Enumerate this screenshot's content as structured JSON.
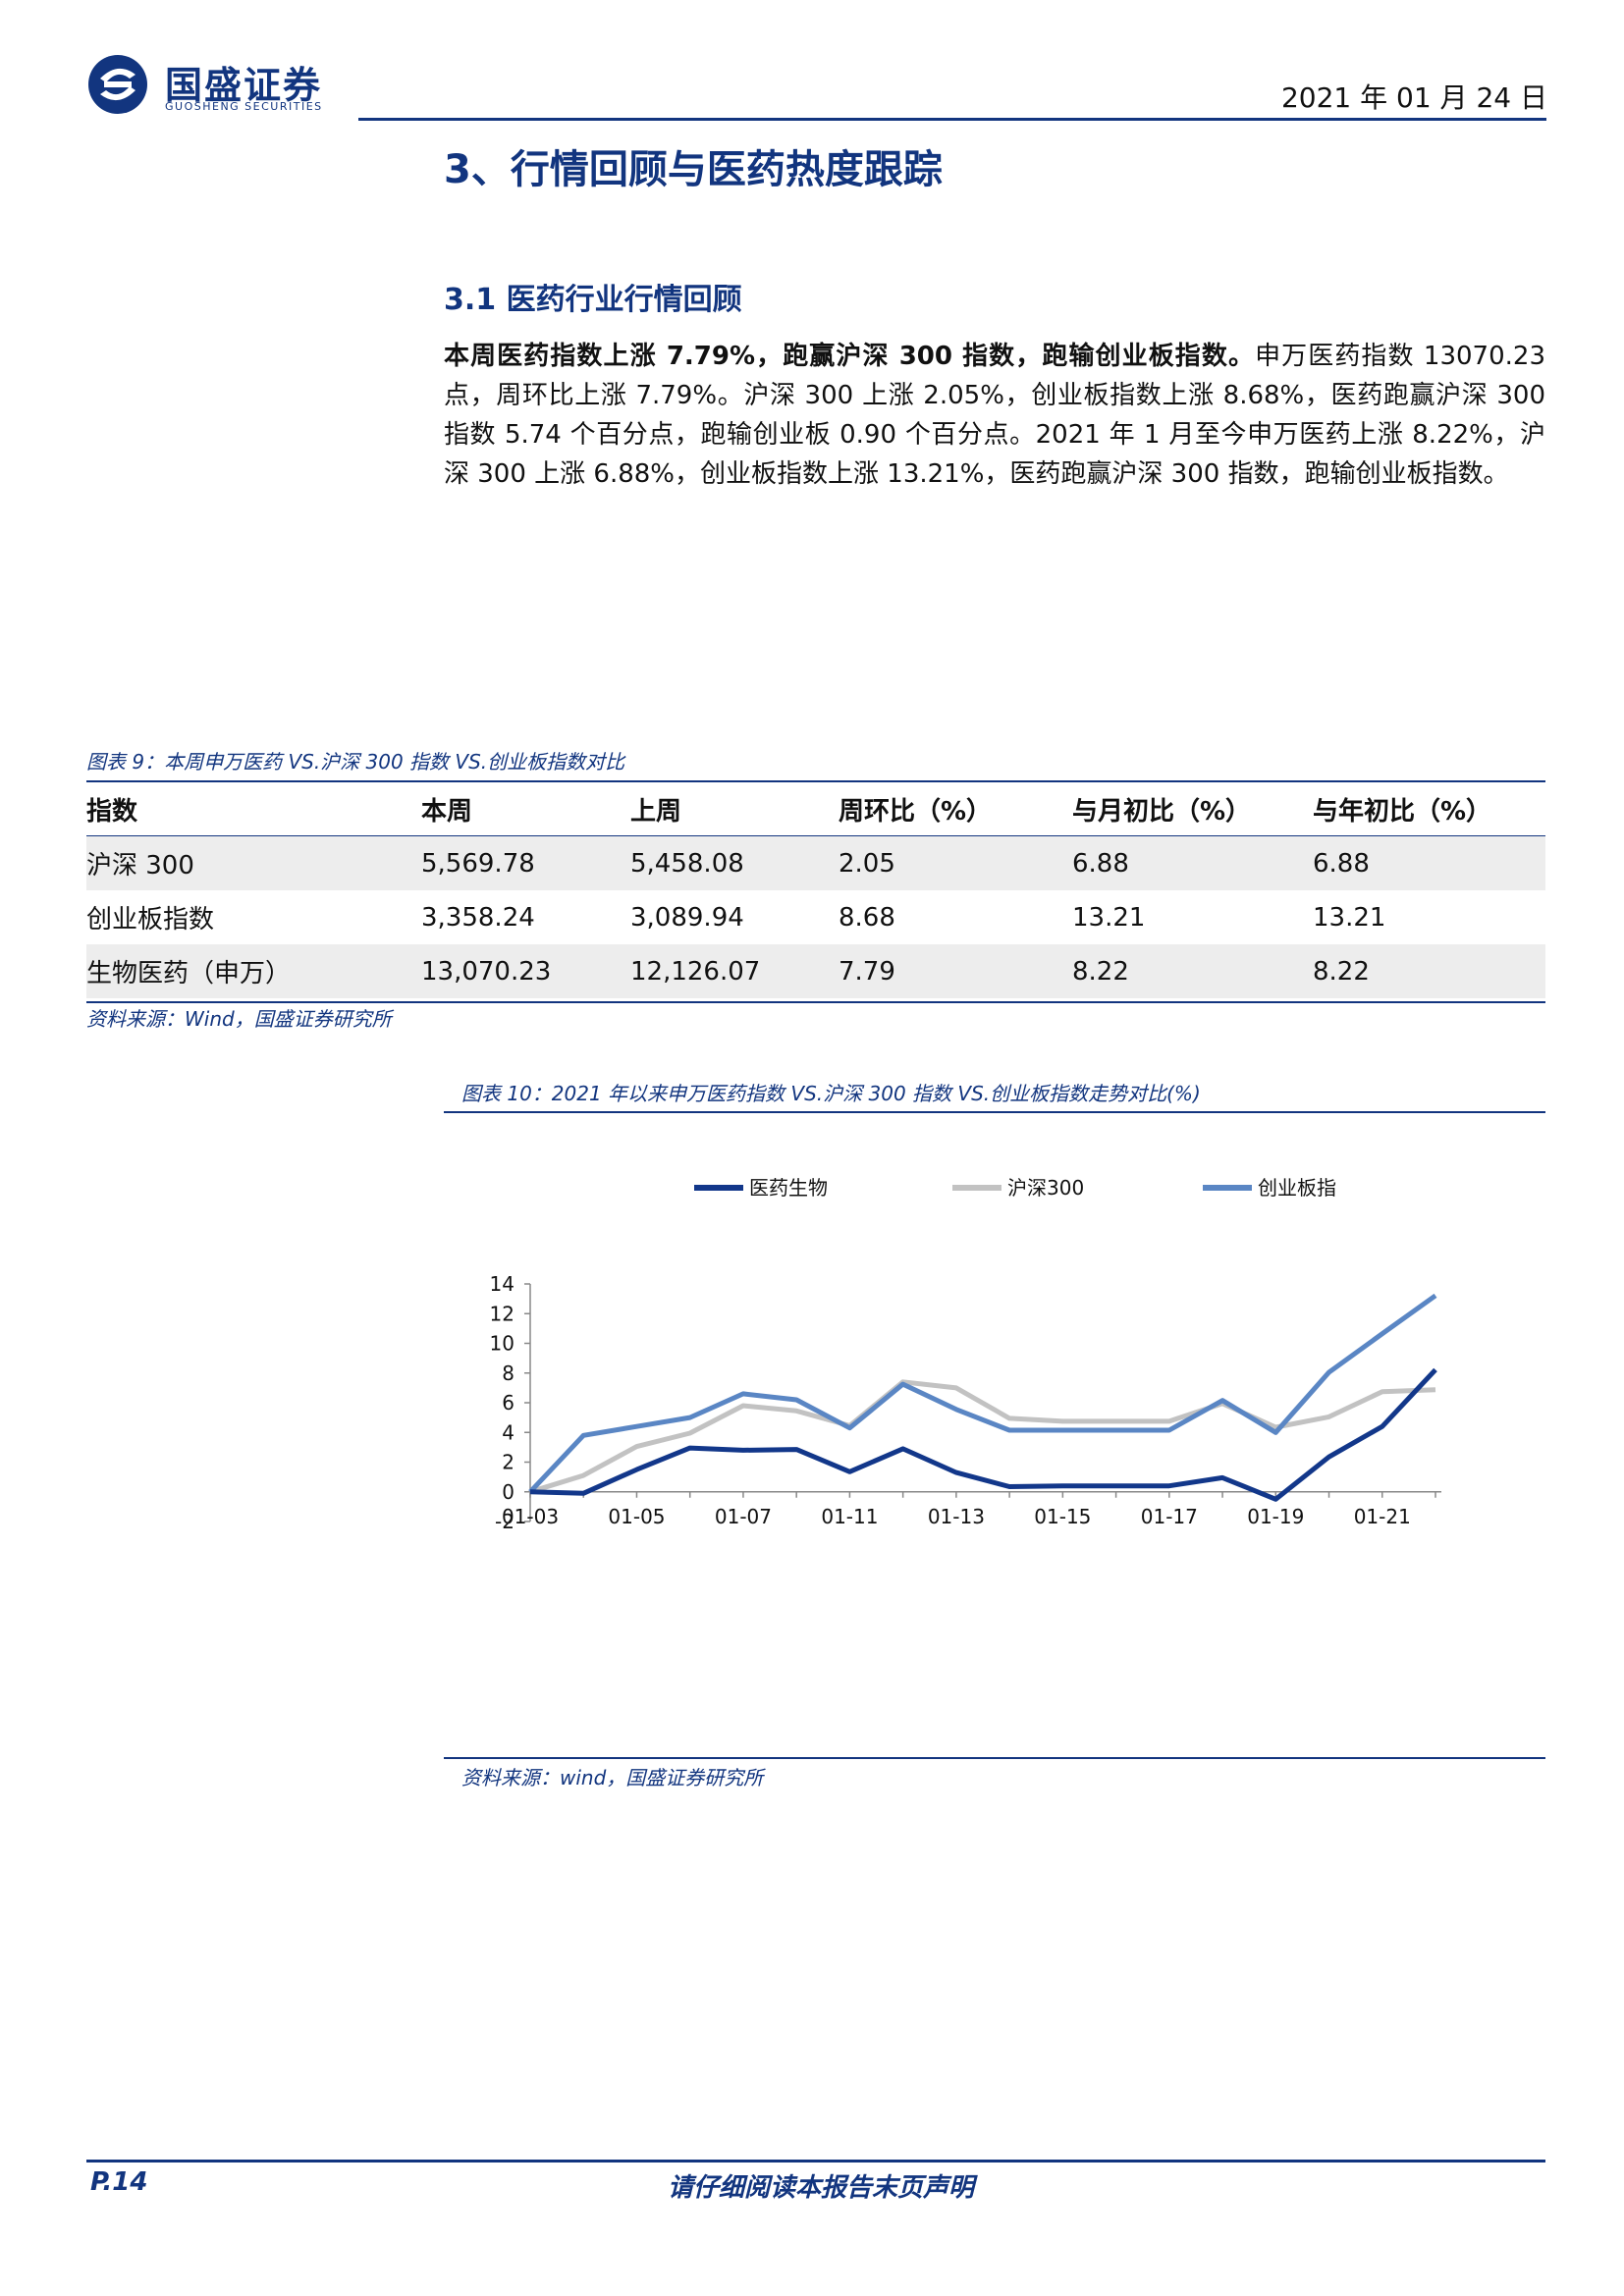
{
  "header": {
    "logo_cn": "国盛证券",
    "logo_en": "GUOSHENG SECURITIES",
    "date": "2021 年 01 月 24 日"
  },
  "section": {
    "heading": "3、行情回顾与医药热度跟踪",
    "subheading": "3.1 医药行业行情回顾",
    "paragraph_bold": "本周医药指数上涨 7.79%，跑赢沪深 300 指数，跑输创业板指数。",
    "paragraph_rest": "申万医药指数 13070.23 点，周环比上涨 7.79%。沪深 300 上涨 2.05%，创业板指数上涨 8.68%，医药跑赢沪深 300 指数 5.74 个百分点，跑输创业板 0.90 个百分点。2021 年 1 月至今申万医药上涨 8.22%，沪深 300 上涨 6.88%，创业板指数上涨 13.21%，医药跑赢沪深 300 指数，跑输创业板指数。"
  },
  "table_figure": {
    "caption": "图表 9：本周申万医药 VS.沪深 300 指数 VS.创业板指数对比",
    "headers": [
      "指数",
      "本周",
      "上周",
      "周环比（%）",
      "与月初比（%）",
      "与年初比（%）"
    ],
    "rows": [
      [
        "沪深 300",
        "5,569.78",
        "5,458.08",
        "2.05",
        "6.88",
        "6.88"
      ],
      [
        "创业板指数",
        "3,358.24",
        "3,089.94",
        "8.68",
        "13.21",
        "13.21"
      ],
      [
        "生物医药（申万）",
        "13,070.23",
        "12,126.07",
        "7.79",
        "8.22",
        "8.22"
      ]
    ],
    "source": "资料来源：Wind，国盛证券研究所"
  },
  "chart_figure": {
    "caption": "图表 10：2021 年以来申万医药指数 VS.沪深 300 指数 VS.创业板指数走势对比(%)",
    "source": "资料来源：wind，国盛证券研究所"
  },
  "chart_data": {
    "type": "line",
    "x": [
      "01-03",
      "01-04",
      "01-05",
      "01-06",
      "01-07",
      "01-08",
      "01-11",
      "01-12",
      "01-13",
      "01-14",
      "01-15",
      "01-16",
      "01-17",
      "01-18",
      "01-19",
      "01-20",
      "01-21",
      "01-22"
    ],
    "x_tick_labels": [
      "01-03",
      "01-05",
      "01-07",
      "01-11",
      "01-13",
      "01-15",
      "01-17",
      "01-19",
      "01-21"
    ],
    "x_tick_index": [
      0,
      2,
      4,
      6,
      8,
      10,
      12,
      14,
      16
    ],
    "ylim": [
      -2,
      14
    ],
    "yticks": [
      -2,
      0,
      2,
      4,
      6,
      8,
      10,
      12,
      14
    ],
    "legend_position": "top",
    "series": [
      {
        "name": "医药生物",
        "color": "#12378a",
        "values": [
          0,
          -0.1,
          1.5,
          2.95,
          2.8,
          2.85,
          1.35,
          2.9,
          1.3,
          0.35,
          0.4,
          0.4,
          0.4,
          0.95,
          -0.5,
          2.35,
          4.4,
          8.22
        ]
      },
      {
        "name": "沪深300",
        "color": "#c2c2c2",
        "values": [
          0,
          1.1,
          3.05,
          3.95,
          5.8,
          5.45,
          4.45,
          7.4,
          7.0,
          4.95,
          4.75,
          4.75,
          4.75,
          5.95,
          4.35,
          5.05,
          6.75,
          6.88
        ]
      },
      {
        "name": "创业板指",
        "color": "#5a86c4",
        "values": [
          0,
          3.8,
          4.4,
          5.0,
          6.6,
          6.2,
          4.3,
          7.25,
          5.55,
          4.15,
          4.15,
          4.15,
          4.15,
          6.15,
          4.0,
          8.05,
          10.65,
          13.21
        ]
      }
    ]
  },
  "footer": {
    "page": "P.14",
    "disclaimer": "请仔细阅读本报告末页声明"
  }
}
